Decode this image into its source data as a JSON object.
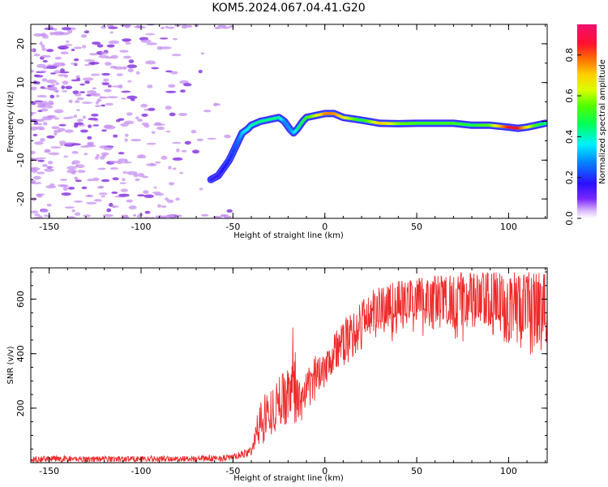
{
  "title": "KOM5.2024.067.04.41.G20",
  "colors": {
    "snr_line": "#ee2a2a",
    "noise_blob": "#c690f0",
    "noise_blob_dark": "#8a3adf"
  },
  "chart_data": [
    {
      "type": "heatmap",
      "name": "spectrogram",
      "xlabel": "Height of straight line (km)",
      "ylabel": "Frequency (Hz)",
      "xlim": [
        -160,
        121
      ],
      "ylim": [
        -25,
        25
      ],
      "xticks": [
        -150,
        -100,
        -50,
        0,
        50,
        100
      ],
      "xtick_labels": [
        "-150",
        "-100",
        "-50",
        "0",
        "50",
        "100"
      ],
      "yticks": [
        -20,
        -10,
        0,
        10,
        20
      ],
      "ytick_labels": [
        "-20",
        "-10",
        "0",
        "10",
        "20"
      ],
      "grid": false,
      "colormap": "gist_ncar-like (purple-blue-cyan-green-yellow-red-magenta)",
      "colorbar": {
        "label": "Normalized spectral amplitude",
        "range": [
          0,
          0.95
        ],
        "ticks": [
          0.0,
          0.2,
          0.4,
          0.6,
          0.8
        ],
        "tick_labels": [
          "0.0",
          "0.2",
          "0.4",
          "0.6",
          "0.8"
        ]
      },
      "signal_trace": {
        "x": [
          -62,
          -58,
          -55,
          -52,
          -50,
          -48,
          -45,
          -42,
          -40,
          -35,
          -30,
          -25,
          -22,
          -19,
          -17,
          -15,
          -12,
          -10,
          -5,
          0,
          5,
          10,
          20,
          30,
          40,
          50,
          60,
          70,
          80,
          90,
          100,
          105,
          110,
          115,
          120
        ],
        "y": [
          -15,
          -14,
          -12,
          -10,
          -8,
          -6,
          -3,
          -2,
          -1,
          0,
          0.5,
          1,
          0,
          -2,
          -3,
          -2,
          0,
          1,
          1.5,
          2,
          2,
          1,
          0.3,
          -0.5,
          -0.6,
          -0.5,
          -0.5,
          -0.5,
          -1,
          -1,
          -1.5,
          -1.8,
          -1.5,
          -1,
          -0.5
        ],
        "amplitude": [
          0.15,
          0.15,
          0.18,
          0.2,
          0.22,
          0.25,
          0.35,
          0.4,
          0.42,
          0.45,
          0.45,
          0.45,
          0.3,
          0.3,
          0.35,
          0.45,
          0.5,
          0.55,
          0.65,
          0.8,
          0.8,
          0.7,
          0.5,
          0.75,
          0.6,
          0.55,
          0.55,
          0.55,
          0.5,
          0.6,
          0.9,
          0.9,
          0.7,
          0.55,
          0.45
        ]
      }
    },
    {
      "type": "line",
      "name": "snr",
      "xlabel": "Height of straight line (km)",
      "ylabel": "SNR (v/v)",
      "xlim": [
        -160,
        121
      ],
      "ylim": [
        0,
        715
      ],
      "xticks": [
        -150,
        -100,
        -50,
        0,
        50,
        100
      ],
      "xtick_labels": [
        "-150",
        "-100",
        "-50",
        "0",
        "50",
        "100"
      ],
      "yticks": [
        200,
        400,
        600
      ],
      "ytick_labels": [
        "200",
        "400",
        "600"
      ],
      "grid": false,
      "series": [
        {
          "envelope_x": [
            -160,
            -120,
            -80,
            -55,
            -50,
            -45,
            -40,
            -38,
            -35,
            -32,
            -30,
            -25,
            -20,
            -17,
            -15,
            -13,
            -10,
            -5,
            0,
            5,
            10,
            15,
            20,
            25,
            30,
            35,
            40,
            45,
            50,
            55,
            60,
            65,
            70,
            80,
            90,
            100,
            110,
            120
          ],
          "envelope_low": [
            2,
            2,
            3,
            5,
            10,
            15,
            25,
            40,
            60,
            80,
            100,
            120,
            150,
            140,
            120,
            150,
            180,
            230,
            280,
            320,
            350,
            380,
            400,
            410,
            420,
            430,
            440,
            450,
            450,
            445,
            440,
            435,
            430,
            420,
            410,
            390,
            370,
            350
          ],
          "envelope_high": [
            25,
            25,
            25,
            28,
            30,
            45,
            60,
            140,
            240,
            280,
            260,
            320,
            360,
            520,
            330,
            300,
            330,
            400,
            440,
            490,
            520,
            560,
            600,
            630,
            650,
            660,
            670,
            670,
            680,
            690,
            690,
            690,
            700,
            700,
            700,
            700,
            700,
            700
          ]
        }
      ]
    }
  ]
}
